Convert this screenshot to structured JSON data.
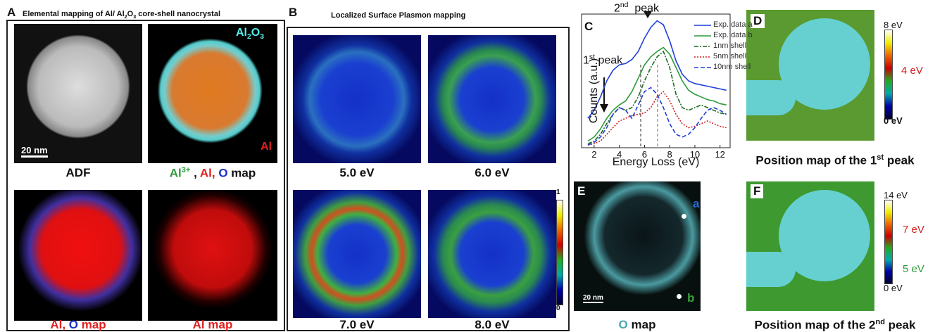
{
  "panel_a": {
    "label": "A",
    "title": [
      {
        "text": "Elemental mapping of Al/ Al"
      },
      {
        "text": "2",
        "sub": true
      },
      {
        "text": "O"
      },
      {
        "text": "3",
        "sub": true
      },
      {
        "text": " core-shell nanocrystal"
      }
    ],
    "captions": [
      [
        {
          "text": "ADF",
          "color": "#111"
        }
      ],
      [
        {
          "text": "Al",
          "color": "#2e9a3a"
        },
        {
          "text": "3+",
          "color": "#2e9a3a",
          "sup": true
        },
        {
          "text": " , ",
          "color": "#111"
        },
        {
          "text": "Al, ",
          "color": "#e02020"
        },
        {
          "text": "O",
          "color": "#1a2fc8"
        },
        {
          "text": " map",
          "color": "#111"
        }
      ],
      [
        {
          "text": "Al, ",
          "color": "#e02020"
        },
        {
          "text": "O",
          "color": "#1a2fc8"
        },
        {
          "text": " map",
          "color": "#e02020"
        }
      ],
      [
        {
          "text": "Al map",
          "color": "#e02020"
        }
      ]
    ],
    "scale_bar": "20 nm",
    "shell_label": [
      {
        "text": "Al"
      },
      {
        "text": "2",
        "sub": true
      },
      {
        "text": "O"
      },
      {
        "text": "3",
        "sub": true
      }
    ],
    "core_label": "Al"
  },
  "panel_b": {
    "label": "B",
    "title": "Localized Surface Plasmon mapping",
    "captions": [
      "5.0 eV",
      "6.0 eV",
      "7.0 eV",
      "8.0 eV"
    ],
    "colorbar_ticks": [
      1,
      0
    ]
  },
  "chart_data": {
    "type": "line",
    "label": "C",
    "x_label": "Energy Loss (eV)",
    "y_label": "Counts (a.u.)",
    "x": [
      1.5,
      2,
      2.5,
      3,
      3.5,
      4,
      4.5,
      5,
      5.5,
      6,
      6.5,
      7,
      7.5,
      8,
      8.5,
      9,
      9.5,
      10,
      10.5,
      11,
      11.5,
      12,
      12.5
    ],
    "xlim": [
      1,
      12.8
    ],
    "xticks": [
      2,
      4,
      6,
      8,
      10,
      12
    ],
    "ylim": [
      0,
      100
    ],
    "series": [
      {
        "name": "Exp. data a",
        "color": "#1f3fd8",
        "dash": "solid",
        "values": [
          22,
          28,
          38,
          50,
          58,
          62,
          63,
          66,
          72,
          82,
          90,
          95,
          92,
          80,
          65,
          55,
          50,
          48,
          47,
          46,
          45,
          44,
          43
        ]
      },
      {
        "name": "Exp. data b",
        "color": "#2e9a3a",
        "dash": "solid",
        "values": [
          5,
          8,
          14,
          22,
          28,
          32,
          35,
          42,
          52,
          62,
          68,
          72,
          75,
          70,
          60,
          50,
          43,
          40,
          38,
          36,
          35,
          33,
          32
        ]
      },
      {
        "name": "1nm shell",
        "color": "#1e6b1e",
        "dash": "dashdot",
        "values": [
          3,
          5,
          10,
          18,
          25,
          30,
          28,
          30,
          38,
          50,
          60,
          68,
          72,
          60,
          40,
          30,
          28,
          30,
          32,
          30,
          28,
          26,
          25
        ]
      },
      {
        "name": "5nm shell",
        "color": "#d42020",
        "dash": "dotted",
        "values": [
          2,
          3,
          5,
          10,
          15,
          20,
          22,
          24,
          25,
          26,
          30,
          38,
          42,
          35,
          25,
          18,
          15,
          16,
          18,
          20,
          18,
          16,
          15
        ]
      },
      {
        "name": "10nm shell",
        "color": "#1f3fd8",
        "dash": "dashed",
        "values": [
          2,
          4,
          8,
          15,
          25,
          30,
          28,
          22,
          32,
          42,
          45,
          40,
          30,
          18,
          10,
          8,
          10,
          15,
          22,
          28,
          30,
          28,
          25
        ]
      }
    ],
    "annotations": [
      [
        {
          "text": "1"
        },
        {
          "text": "st",
          "sup": true
        },
        {
          "text": " peak"
        }
      ],
      [
        {
          "text": "2"
        },
        {
          "text": "nd",
          "sup": true
        },
        {
          "text": "  peak"
        }
      ]
    ]
  },
  "panel_d": {
    "label": "D",
    "colorbar_labels": [
      "8 eV",
      "4 eV",
      "0 eV"
    ],
    "caption": [
      {
        "text": "Position map of the 1"
      },
      {
        "text": "st",
        "sup": true
      },
      {
        "text": " peak"
      }
    ]
  },
  "panel_e": {
    "label": "E",
    "point_a": "a",
    "point_b": "b",
    "scale_bar": "20 nm",
    "caption": [
      {
        "text": "O",
        "color": "#4aa8b0"
      },
      {
        "text": " map",
        "color": "#111"
      }
    ]
  },
  "panel_f": {
    "label": "F",
    "colorbar_labels": [
      "14 eV",
      "7 eV",
      "5 eV",
      "0 eV"
    ],
    "caption": [
      {
        "text": "Position map of the 2"
      },
      {
        "text": "nd",
        "sup": true
      },
      {
        "text": " peak"
      }
    ]
  }
}
